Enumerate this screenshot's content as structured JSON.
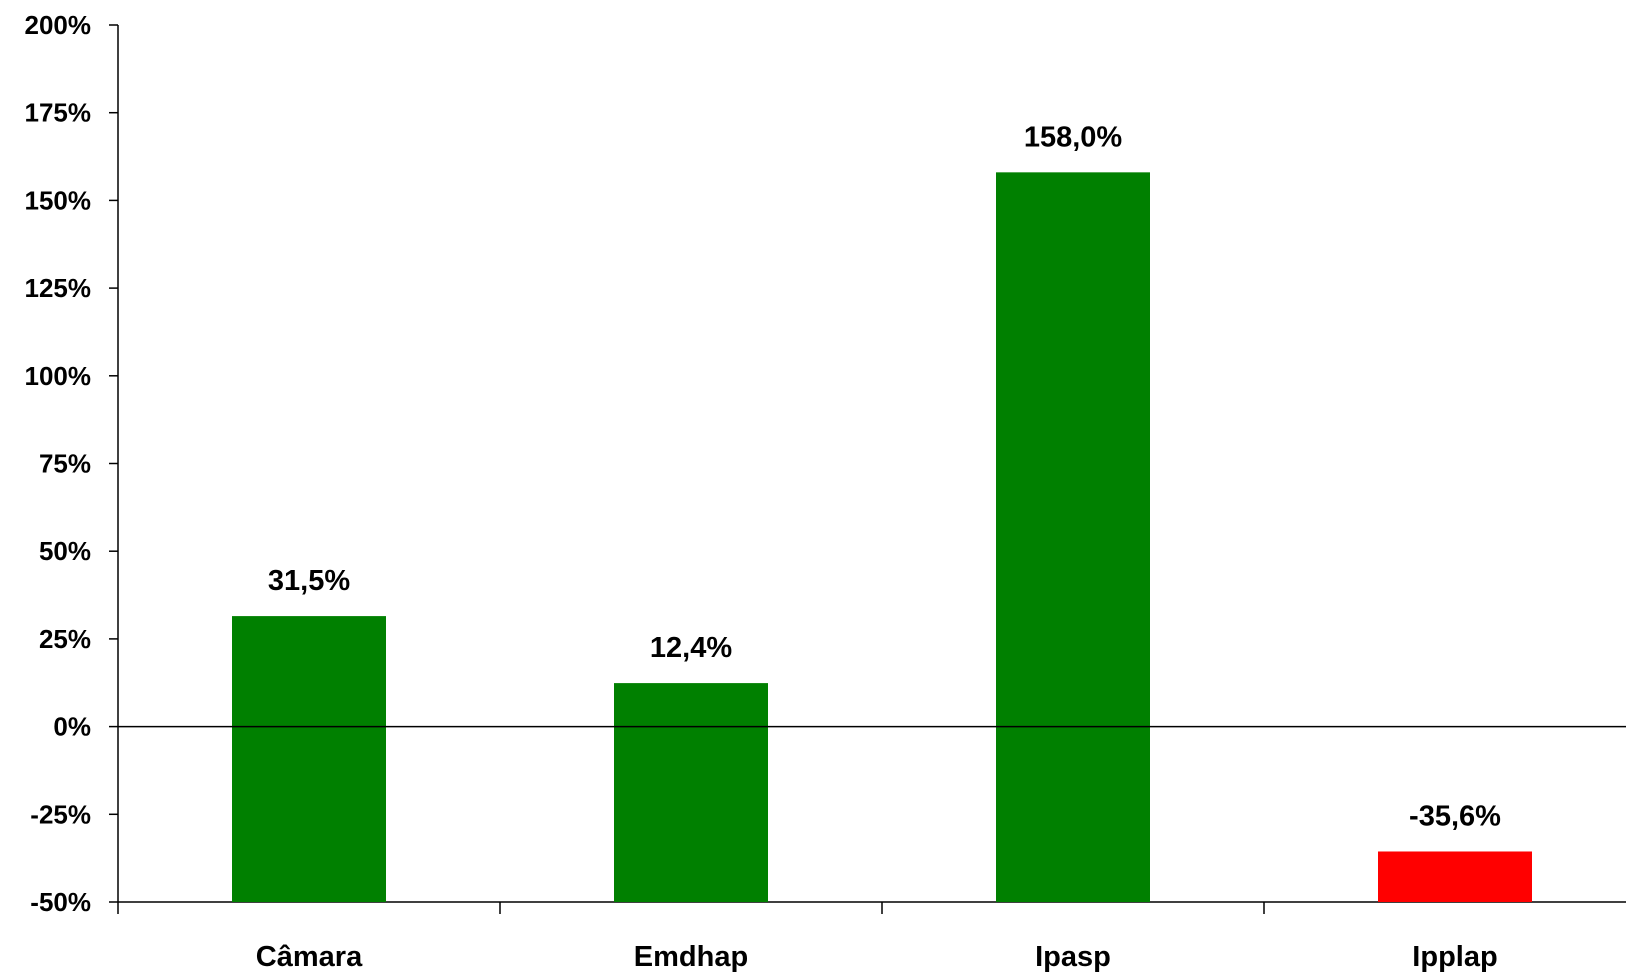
{
  "chart_data": {
    "type": "bar",
    "title": "",
    "xlabel": "",
    "ylabel": "",
    "categories": [
      "Câmara",
      "Emdhap",
      "Ipasp",
      "Ipplap"
    ],
    "values": [
      31.5,
      12.4,
      158.0,
      -35.6
    ],
    "data_labels": [
      "31,5%",
      "12,4%",
      "158,0%",
      "-35,6%"
    ],
    "ylim": [
      -50,
      200
    ],
    "y_ticks": [
      200,
      175,
      150,
      125,
      100,
      75,
      50,
      25,
      0,
      -25,
      -50
    ],
    "y_tick_labels": [
      "200%",
      "175%",
      "150%",
      "125%",
      "100%",
      "75%",
      "50%",
      "25%",
      "0%",
      "-25%",
      "-50%"
    ],
    "grid": false,
    "legend": "none",
    "colors": {
      "positive": "#008000",
      "negative": "#ff0000",
      "axis": "#000000"
    }
  }
}
